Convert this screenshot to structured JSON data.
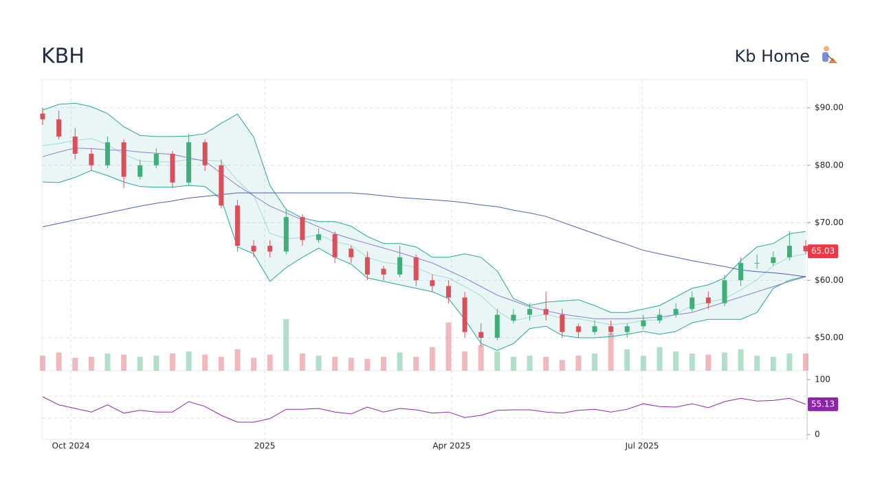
{
  "chart_data": {
    "type": "candlestick",
    "title": "KBH",
    "subtitle": "Kb Home",
    "open": [
      89,
      88,
      85,
      82,
      80,
      84,
      78,
      80,
      82,
      77,
      84,
      80,
      73,
      66,
      66,
      65,
      71,
      67,
      68,
      65.5,
      64,
      62,
      61,
      64,
      60,
      59,
      57,
      51,
      50,
      53,
      54,
      55,
      54,
      52,
      51,
      52,
      51,
      52,
      53,
      54,
      55,
      57,
      56,
      60,
      63,
      63,
      64,
      66
    ],
    "high": [
      90,
      89.5,
      86.5,
      83,
      85,
      84.5,
      81,
      83,
      82.5,
      85.5,
      84.5,
      81,
      74,
      67,
      67,
      72.5,
      71.5,
      69,
      68.5,
      66,
      65,
      62.5,
      66,
      64.5,
      61,
      60,
      58,
      52.5,
      55,
      55,
      56,
      58,
      55,
      52.5,
      53,
      53,
      52.5,
      54,
      55,
      56,
      58,
      58,
      61,
      64,
      64.5,
      65,
      68.5,
      67
    ],
    "low": [
      87,
      84.5,
      81,
      79,
      79.5,
      76,
      77.5,
      79.5,
      76,
      76.5,
      79,
      72.5,
      65,
      64,
      64,
      64.5,
      66,
      66.5,
      63,
      63,
      60,
      60,
      60.5,
      59,
      58,
      56,
      50,
      48.5,
      49.5,
      52.5,
      53,
      53,
      50,
      50,
      50.5,
      50.5,
      50,
      51.5,
      52.5,
      53.5,
      54.5,
      55,
      55.5,
      59,
      62,
      62.5,
      63.5,
      64.5
    ],
    "close": [
      88,
      85,
      82,
      80,
      84,
      78,
      80,
      82,
      77,
      84,
      80,
      73,
      66,
      65,
      65,
      71,
      67,
      68,
      64,
      64,
      61,
      61,
      64,
      60,
      59,
      57,
      51,
      50,
      54,
      54,
      55,
      54,
      51,
      51,
      52,
      51,
      52,
      53,
      54,
      55,
      57,
      56,
      60,
      63,
      63,
      64,
      66,
      65.03
    ],
    "volume": [
      1400000,
      1700000,
      1200000,
      1300000,
      1600000,
      1500000,
      1300000,
      1400000,
      1600000,
      1800000,
      1500000,
      1300000,
      2000000,
      1200000,
      1500000,
      4800000,
      1600000,
      1400000,
      1300000,
      1200000,
      1100000,
      1300000,
      1700000,
      1300000,
      2200000,
      4500000,
      1800000,
      2400000,
      1800000,
      1300000,
      1400000,
      1300000,
      1000000,
      1400000,
      1600000,
      3500000,
      2000000,
      1400000,
      2200000,
      1800000,
      1600000,
      1500000,
      1700000,
      2000000,
      1400000,
      1300000,
      1600000,
      1600000
    ],
    "up_color": "#3fae7a",
    "down_color": "#d9505c",
    "bollinger": {
      "color": "#26a69a",
      "upper": [
        89.6,
        90.6,
        90.8,
        90.2,
        89,
        86.7,
        85.2,
        85,
        85,
        85.1,
        85.5,
        87.3,
        88.9,
        84.9,
        76.5,
        72.3,
        70.8,
        70.2,
        70.2,
        69.4,
        67.6,
        66.4,
        66.4,
        65.8,
        64,
        64,
        64.6,
        64,
        61.6,
        56.8,
        55.6,
        56.2,
        56.4,
        56.6,
        55.6,
        54.4,
        54.4,
        55,
        55.6,
        57.1,
        58.6,
        59.2,
        60.4,
        63.4,
        65.8,
        66.4,
        68.1,
        68.5
      ],
      "middle": [
        83.4,
        83.8,
        84.35,
        84.65,
        83.6,
        81.9,
        80.75,
        80.6,
        80.6,
        81,
        80.9,
        80.7,
        77.35,
        74.75,
        68.15,
        67.25,
        67.4,
        67.9,
        66.7,
        66.1,
        64,
        63.1,
        62.8,
        62.2,
        61,
        60.4,
        58.9,
        57.3,
        54.7,
        52.9,
        53.6,
        54.1,
        53.4,
        53.3,
        52.8,
        52.3,
        52.5,
        53.05,
        53.1,
        54.1,
        55.6,
        56.2,
        56.8,
        58.3,
        60.1,
        62.5,
        64.05,
        64.6
      ],
      "lower": [
        77.1,
        77,
        77.9,
        79.1,
        78.2,
        77.1,
        76.3,
        76.2,
        76.2,
        76.5,
        76.3,
        74.1,
        65.8,
        64.6,
        59.8,
        62.2,
        64,
        65.6,
        64,
        62.8,
        60.4,
        59.8,
        59.2,
        58.6,
        58,
        56.8,
        53.2,
        49,
        47.8,
        49,
        51.6,
        52,
        50.4,
        50,
        50,
        50.2,
        50.6,
        51.1,
        50.6,
        51.1,
        52.6,
        53.2,
        53.2,
        53.2,
        54.4,
        58.6,
        60,
        60.7
      ]
    },
    "moving_averages": [
      {
        "color": "#8c7fcf",
        "values": [
          81.5,
          82.3,
          83,
          82.9,
          82.7,
          82.6,
          82.3,
          82.1,
          81.9,
          81.3,
          80.7,
          78.6,
          76.5,
          74.7,
          72.9,
          71.7,
          70.5,
          69.3,
          68.1,
          67.2,
          66.4,
          65.6,
          64.8,
          63.9,
          63,
          61.7,
          60.4,
          58.9,
          57.4,
          56.4,
          55.4,
          54.7,
          54.1,
          53.7,
          53.3,
          53.3,
          53.3,
          53.4,
          53.6,
          54,
          54.4,
          55.3,
          56.2,
          57.1,
          58,
          58.9,
          59.8,
          60.6
        ]
      },
      {
        "color": "#4a5fb0",
        "values": [
          69.3,
          69.9,
          70.5,
          71.1,
          71.7,
          72.3,
          72.9,
          73.4,
          73.8,
          74.3,
          74.6,
          74.9,
          75.2,
          75.2,
          75.2,
          75.2,
          75.2,
          75.2,
          75.2,
          75.2,
          75,
          74.7,
          74.4,
          74.2,
          74,
          73.8,
          73.5,
          73.1,
          72.8,
          72.2,
          71.7,
          71.1,
          70.1,
          69.1,
          68.1,
          67.1,
          66.2,
          65.2,
          64.6,
          64,
          63.4,
          62.9,
          62.4,
          61.8,
          61.5,
          61.3,
          61,
          60.6
        ]
      }
    ],
    "ylim": [
      44.27,
      94.9
    ],
    "yticks": [
      {
        "value": 50,
        "label": "$50.00"
      },
      {
        "value": 60,
        "label": "$60.00"
      },
      {
        "value": 70,
        "label": "$70.00"
      },
      {
        "value": 80,
        "label": "$80.00"
      },
      {
        "value": 90,
        "label": "$90.00"
      }
    ],
    "xticks": [
      {
        "value": 1.74,
        "label": "Oct 2024"
      },
      {
        "value": 13.68,
        "label": "2025"
      },
      {
        "value": 25.19,
        "label": "Apr 2025"
      },
      {
        "value": 36.92,
        "label": "Jul 2025"
      }
    ],
    "grid": true,
    "rsi": {
      "color": "#8e24aa",
      "ylim": [
        -8.75,
        116.25
      ],
      "yticks": [
        0,
        100
      ],
      "guides": [
        30,
        70
      ],
      "values": [
        68.75,
        54,
        47.5,
        41,
        54,
        39,
        44,
        41,
        41,
        60,
        51,
        35,
        22.5,
        22.5,
        29,
        46,
        46,
        47.5,
        41,
        37.5,
        50,
        41,
        47.5,
        45,
        39,
        41,
        31,
        35,
        44,
        45,
        45,
        41,
        39,
        44,
        46,
        41,
        46,
        56,
        51,
        50,
        56,
        49,
        60,
        66,
        61,
        62,
        66,
        55.13
      ]
    }
  }
}
